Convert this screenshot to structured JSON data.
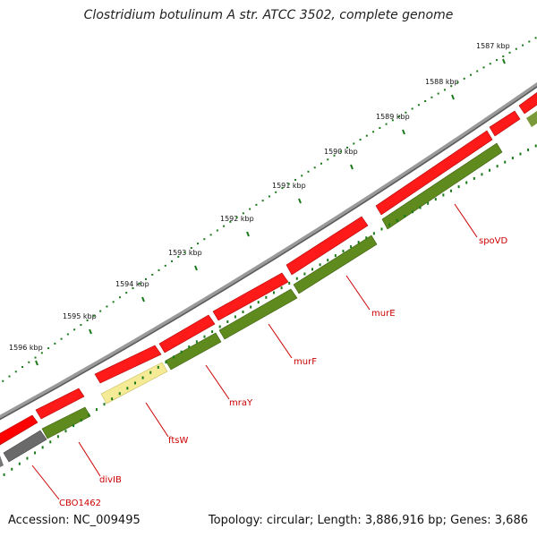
{
  "title": "Clostridium botulinum A str. ATCC 3502, complete genome",
  "footer": {
    "accession": "Accession: NC_009495",
    "topology": "Topology: circular; Length: 3,886,916 bp; Genes: 3,686"
  },
  "ticks": [
    {
      "kbp": 1587,
      "label": "1587 kbp"
    },
    {
      "kbp": 1588,
      "label": "1588 kbp"
    },
    {
      "kbp": 1589,
      "label": "1589 kbp"
    },
    {
      "kbp": 1590,
      "label": "1590 kbp"
    },
    {
      "kbp": 1591,
      "label": "1591 kbp"
    },
    {
      "kbp": 1592,
      "label": "1592 kbp"
    },
    {
      "kbp": 1593,
      "label": "1593 kbp"
    },
    {
      "kbp": 1594,
      "label": "1594 kbp"
    },
    {
      "kbp": 1595,
      "label": "1595 kbp"
    },
    {
      "kbp": 1596,
      "label": "1596 kbp"
    }
  ],
  "gene_labels": [
    {
      "name": "spoVD"
    },
    {
      "name": "murE"
    },
    {
      "name": "murF"
    },
    {
      "name": "mraY"
    },
    {
      "name": "ftsW"
    },
    {
      "name": "divIB"
    },
    {
      "name": "CBO1462"
    }
  ],
  "colors": {
    "backbone": "#8a8a8a",
    "cds_forward": "#ff0000",
    "gene_track": "#5e8a1e",
    "highlight_gene": "#f0e68c",
    "other_gene": "#666666",
    "tick": "#1a7a1a",
    "label": "#cc0000"
  }
}
